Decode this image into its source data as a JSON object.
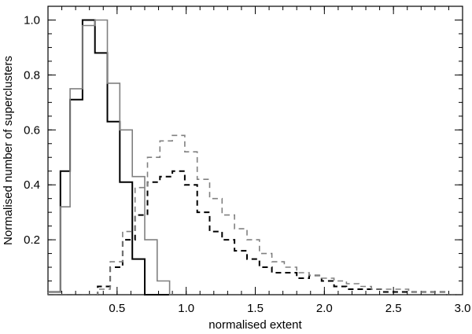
{
  "chart_data": {
    "type": "line",
    "title": "",
    "xlabel": "normalised extent",
    "ylabel": "Normalised number of superclusters",
    "xlim": [
      0.0,
      3.0
    ],
    "ylim": [
      0.0,
      1.05
    ],
    "x_ticks": [
      0.5,
      1.0,
      1.5,
      2.0,
      2.5,
      3.0
    ],
    "x_tick_labels": [
      "0.5",
      "1.0",
      "1.5",
      "2.0",
      "2.5",
      "3.0"
    ],
    "y_ticks": [
      0.2,
      0.4,
      0.6,
      0.8,
      1.0
    ],
    "y_tick_labels": [
      "0.2",
      "0.4",
      "0.6",
      "0.8",
      "1.0"
    ],
    "grid": false,
    "series": [
      {
        "style": "solid",
        "color": "#000000",
        "bin_edges": [
          0.0,
          0.09,
          0.16,
          0.25,
          0.34,
          0.43,
          0.52,
          0.61,
          0.7,
          0.79,
          0.88,
          0.97
        ],
        "values": [
          0.01,
          0.45,
          0.71,
          1.0,
          0.88,
          0.63,
          0.41,
          0.13,
          0.0,
          0.0,
          0.0
        ]
      },
      {
        "style": "solid",
        "color": "#808080",
        "bin_edges": [
          0.0,
          0.09,
          0.16,
          0.25,
          0.34,
          0.43,
          0.52,
          0.61,
          0.7,
          0.79,
          0.88,
          0.97
        ],
        "values": [
          0.01,
          0.32,
          0.75,
          0.98,
          1.0,
          0.77,
          0.6,
          0.43,
          0.2,
          0.05,
          0.0
        ]
      },
      {
        "style": "dashed",
        "color": "#000000",
        "bin_edges": [
          0.0,
          0.09,
          0.18,
          0.27,
          0.36,
          0.45,
          0.54,
          0.63,
          0.72,
          0.81,
          0.9,
          0.99,
          1.08,
          1.17,
          1.26,
          1.35,
          1.44,
          1.53,
          1.62,
          1.71,
          1.8,
          1.89,
          1.98,
          2.07,
          2.16,
          2.25,
          2.34,
          2.43,
          2.52,
          2.61,
          2.7,
          2.79,
          2.88,
          2.97,
          3.0
        ],
        "values": [
          0.0,
          0.0,
          0.0,
          0.0,
          0.03,
          0.1,
          0.2,
          0.29,
          0.41,
          0.43,
          0.45,
          0.4,
          0.3,
          0.23,
          0.2,
          0.16,
          0.13,
          0.1,
          0.08,
          0.08,
          0.06,
          0.07,
          0.05,
          0.03,
          0.02,
          0.02,
          0.02,
          0.01,
          0.01,
          0.01,
          0.01,
          0.01,
          0.0,
          0.0
        ]
      },
      {
        "style": "dashed",
        "color": "#808080",
        "bin_edges": [
          0.0,
          0.09,
          0.18,
          0.27,
          0.36,
          0.45,
          0.54,
          0.63,
          0.72,
          0.81,
          0.9,
          0.99,
          1.08,
          1.17,
          1.26,
          1.35,
          1.44,
          1.53,
          1.62,
          1.71,
          1.8,
          1.89,
          1.98,
          2.07,
          2.16,
          2.25,
          2.34,
          2.43,
          2.52,
          2.61,
          2.7,
          2.79,
          2.88,
          2.97,
          3.0
        ],
        "values": [
          0.0,
          0.0,
          0.0,
          0.0,
          0.02,
          0.12,
          0.23,
          0.39,
          0.5,
          0.56,
          0.58,
          0.52,
          0.42,
          0.35,
          0.29,
          0.24,
          0.2,
          0.15,
          0.12,
          0.1,
          0.08,
          0.07,
          0.06,
          0.05,
          0.04,
          0.03,
          0.02,
          0.02,
          0.02,
          0.01,
          0.01,
          0.01,
          0.0,
          0.0
        ]
      }
    ]
  }
}
